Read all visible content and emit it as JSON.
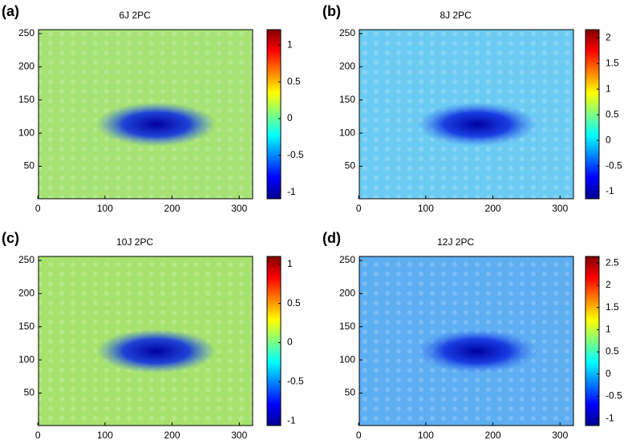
{
  "chart_data": [
    {
      "type": "heatmap",
      "panel_label": "(a)",
      "title": "6J 2PC",
      "xlim": [
        1,
        320
      ],
      "ylim": [
        1,
        256
      ],
      "xticks": [
        0,
        100,
        200,
        300
      ],
      "yticks": [
        50,
        100,
        150,
        200,
        250
      ],
      "colormap": "jet",
      "color": "#a6e274",
      "clim": [
        -1.09,
        1.21
      ],
      "cticks": [
        -1,
        -0.5,
        0,
        0.5,
        1
      ]
    },
    {
      "type": "heatmap",
      "panel_label": "(b)",
      "title": "8J 2PC",
      "xlim": [
        1,
        320
      ],
      "ylim": [
        1,
        256
      ],
      "xticks": [
        0,
        100,
        200,
        300
      ],
      "yticks": [
        50,
        100,
        150,
        200,
        250
      ],
      "colormap": "jet",
      "color": "#6ccbf2",
      "clim": [
        -1.14,
        2.16
      ],
      "cticks": [
        -1,
        -0.5,
        0,
        0.5,
        1,
        1.5,
        2
      ]
    },
    {
      "type": "heatmap",
      "panel_label": "(c)",
      "title": "10J 2PC",
      "xlim": [
        1,
        320
      ],
      "ylim": [
        1,
        256
      ],
      "xticks": [
        0,
        100,
        200,
        300
      ],
      "yticks": [
        50,
        100,
        150,
        200,
        250
      ],
      "colormap": "jet",
      "color": "#a8e26e",
      "clim": [
        -1.06,
        1.1
      ],
      "cticks": [
        -1,
        -0.5,
        0,
        0.5,
        1
      ]
    },
    {
      "type": "heatmap",
      "panel_label": "(d)",
      "title": "12J 2PC",
      "xlim": [
        1,
        320
      ],
      "ylim": [
        1,
        256
      ],
      "xticks": [
        0,
        100,
        200,
        300
      ],
      "yticks": [
        50,
        100,
        150,
        200,
        250
      ],
      "colormap": "jet",
      "color": "#5eaef2",
      "clim": [
        -1.16,
        2.65
      ],
      "cticks": [
        -1,
        -0.5,
        0,
        0.5,
        1,
        1.5,
        2,
        2.5
      ]
    }
  ]
}
